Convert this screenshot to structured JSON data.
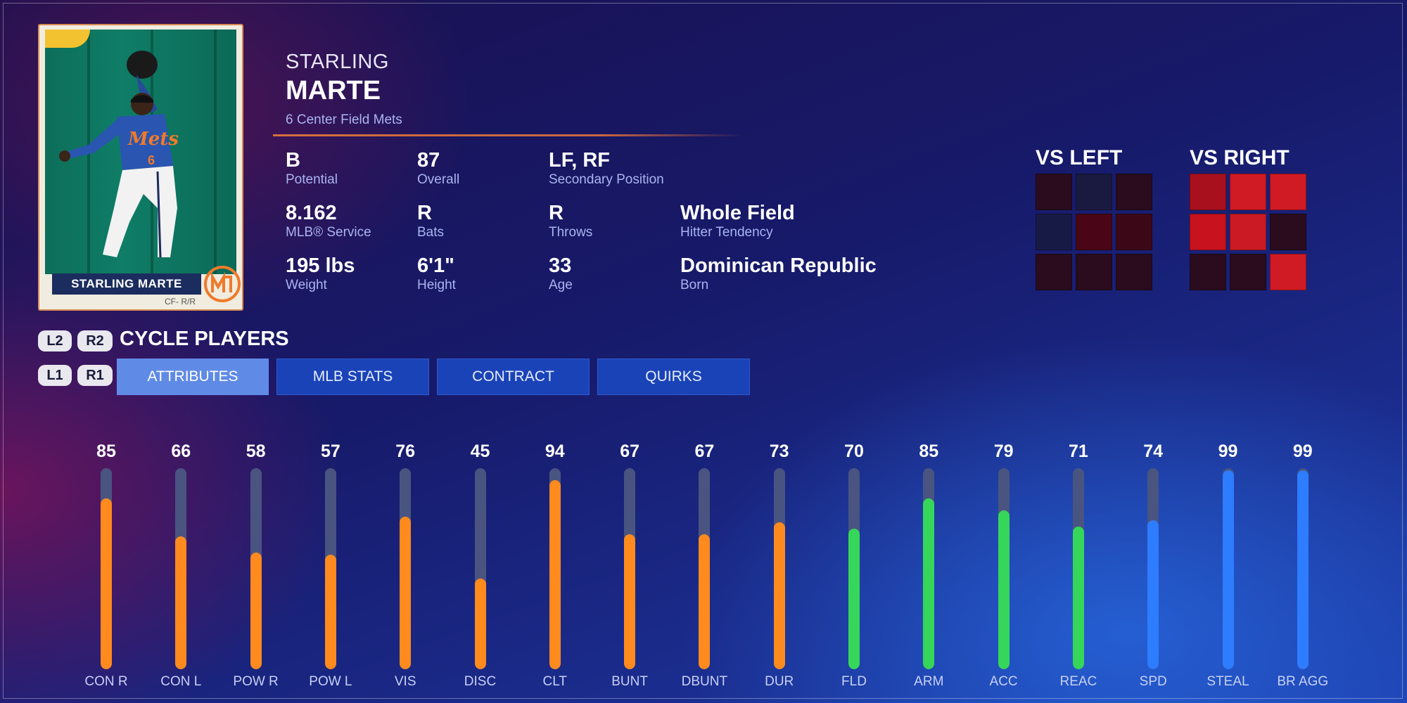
{
  "card": {
    "nameplate": "STARLING MARTE",
    "position_hand": "CF- R/R",
    "jersey_text": "Mets",
    "jersey_number": "6"
  },
  "player": {
    "first_name": "STARLING",
    "last_name": "MARTE",
    "subline": "6  Center Field  Mets"
  },
  "stats": [
    {
      "value": "B",
      "label": "Potential"
    },
    {
      "value": "87",
      "label": "Overall"
    },
    {
      "value": "LF, RF",
      "label": "Secondary Position"
    },
    {
      "value": "8.162",
      "label": "MLB® Service"
    },
    {
      "value": "R",
      "label": "Bats"
    },
    {
      "value": "R",
      "label": "Throws"
    },
    {
      "value": "Whole Field",
      "label": "Hitter Tendency"
    },
    {
      "value": "195 lbs",
      "label": "Weight"
    },
    {
      "value": "6'1\"",
      "label": "Height"
    },
    {
      "value": "33",
      "label": "Age"
    },
    {
      "value": "Dominican Republic",
      "label": "Born"
    }
  ],
  "zones": {
    "vs_left": {
      "title": "VS LEFT",
      "cells": [
        "#2a0c1e",
        "#1a1a40",
        "#2a0c1e",
        "#181a46",
        "#4a0616",
        "#3c0818",
        "#2a0c1e",
        "#2a0c1e",
        "#2a0c1e"
      ]
    },
    "vs_right": {
      "title": "VS RIGHT",
      "cells": [
        "#a8101e",
        "#d01a24",
        "#d01a24",
        "#c8121e",
        "#cc1a24",
        "#2a0c1e",
        "#2a0c1e",
        "#2a0c1e",
        "#d01a24"
      ]
    }
  },
  "cycle": {
    "l2": "L2",
    "r2": "R2",
    "label": "CYCLE PLAYERS",
    "l1": "L1",
    "r1": "R1"
  },
  "tabs": [
    {
      "label": "ATTRIBUTES",
      "active": true
    },
    {
      "label": "MLB STATS",
      "active": false
    },
    {
      "label": "CONTRACT",
      "active": false
    },
    {
      "label": "QUIRKS",
      "active": false
    }
  ],
  "colors": {
    "hitting": "#ff8a1e",
    "fielding": "#36d65a",
    "running": "#2e7cff"
  },
  "attributes": [
    {
      "label": "CON R",
      "value": 85,
      "group": "hitting"
    },
    {
      "label": "CON L",
      "value": 66,
      "group": "hitting"
    },
    {
      "label": "POW R",
      "value": 58,
      "group": "hitting"
    },
    {
      "label": "POW L",
      "value": 57,
      "group": "hitting"
    },
    {
      "label": "VIS",
      "value": 76,
      "group": "hitting"
    },
    {
      "label": "DISC",
      "value": 45,
      "group": "hitting"
    },
    {
      "label": "CLT",
      "value": 94,
      "group": "hitting"
    },
    {
      "label": "BUNT",
      "value": 67,
      "group": "hitting"
    },
    {
      "label": "DBUNT",
      "value": 67,
      "group": "hitting"
    },
    {
      "label": "DUR",
      "value": 73,
      "group": "hitting"
    },
    {
      "label": "FLD",
      "value": 70,
      "group": "fielding"
    },
    {
      "label": "ARM",
      "value": 85,
      "group": "fielding"
    },
    {
      "label": "ACC",
      "value": 79,
      "group": "fielding"
    },
    {
      "label": "REAC",
      "value": 71,
      "group": "fielding"
    },
    {
      "label": "SPD",
      "value": 74,
      "group": "running"
    },
    {
      "label": "STEAL",
      "value": 99,
      "group": "running"
    },
    {
      "label": "BR AGG",
      "value": 99,
      "group": "running"
    }
  ]
}
